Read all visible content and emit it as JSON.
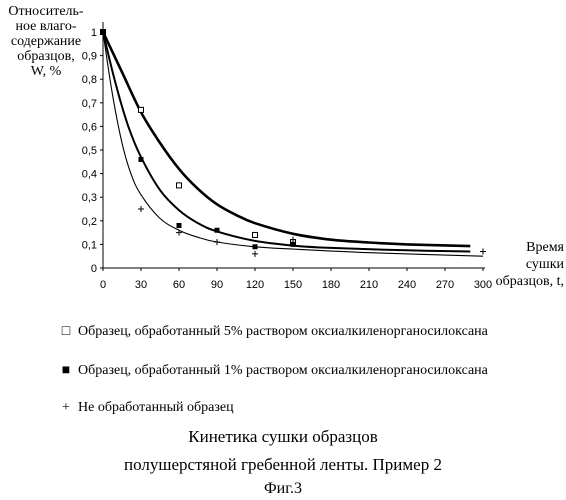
{
  "chart_data": {
    "type": "scatter",
    "ylabel_lines": [
      "Относитель-",
      "ное влаго-",
      "содержание",
      "образцов,",
      "W, %"
    ],
    "xlabel_lines": [
      "Время",
      "сушки",
      "образцов, t,"
    ],
    "x_ticks": [
      "0",
      "30",
      "60",
      "90",
      "120",
      "150",
      "180",
      "210",
      "240",
      "270",
      "300"
    ],
    "y_ticks": [
      "0",
      "0,1",
      "0,2",
      "0,3",
      "0,4",
      "0,5",
      "0,6",
      "0,7",
      "0,8",
      "0,9",
      "1"
    ],
    "xlim": [
      0,
      300
    ],
    "ylim": [
      0,
      1
    ],
    "series": [
      {
        "name": "Образец, обработанный 5% раствором оксиалкиленорганосилоксана",
        "marker": "open-square",
        "points": [
          [
            0,
            1
          ],
          [
            30,
            0.67
          ],
          [
            60,
            0.35
          ],
          [
            120,
            0.14
          ],
          [
            150,
            0.11
          ]
        ],
        "curve": [
          [
            0,
            1
          ],
          [
            15,
            0.83
          ],
          [
            30,
            0.66
          ],
          [
            45,
            0.53
          ],
          [
            60,
            0.42
          ],
          [
            75,
            0.335
          ],
          [
            90,
            0.27
          ],
          [
            105,
            0.225
          ],
          [
            120,
            0.19
          ],
          [
            150,
            0.145
          ],
          [
            180,
            0.12
          ],
          [
            210,
            0.108
          ],
          [
            240,
            0.1
          ],
          [
            290,
            0.093
          ]
        ],
        "line_width": 2.6
      },
      {
        "name": "Образец, обработанный 1% раствором оксиалкиленорганосилоксана",
        "marker": "filled-square",
        "points": [
          [
            0,
            1
          ],
          [
            30,
            0.46
          ],
          [
            60,
            0.18
          ],
          [
            90,
            0.16
          ],
          [
            120,
            0.09
          ],
          [
            150,
            0.1
          ]
        ],
        "curve": [
          [
            0,
            1
          ],
          [
            10,
            0.78
          ],
          [
            20,
            0.6
          ],
          [
            30,
            0.47
          ],
          [
            45,
            0.33
          ],
          [
            60,
            0.245
          ],
          [
            75,
            0.19
          ],
          [
            90,
            0.155
          ],
          [
            120,
            0.115
          ],
          [
            150,
            0.095
          ],
          [
            180,
            0.085
          ],
          [
            240,
            0.075
          ],
          [
            290,
            0.07
          ]
        ],
        "line_width": 2.0
      },
      {
        "name": "Не обработанный образец",
        "marker": "plus",
        "points": [
          [
            0,
            1
          ],
          [
            30,
            0.25
          ],
          [
            60,
            0.15
          ],
          [
            90,
            0.11
          ],
          [
            120,
            0.06
          ],
          [
            150,
            0.12
          ],
          [
            300,
            0.07
          ]
        ],
        "curve": [
          [
            0,
            1
          ],
          [
            7,
            0.75
          ],
          [
            15,
            0.53
          ],
          [
            22,
            0.4
          ],
          [
            30,
            0.31
          ],
          [
            45,
            0.21
          ],
          [
            60,
            0.16
          ],
          [
            75,
            0.13
          ],
          [
            90,
            0.11
          ],
          [
            120,
            0.09
          ],
          [
            150,
            0.08
          ],
          [
            210,
            0.065
          ],
          [
            300,
            0.05
          ]
        ],
        "line_width": 1.1
      }
    ],
    "caption_lines": [
      "Кинетика сушки образцов",
      "полушерстяной гребенной ленты. Пример 2"
    ],
    "figure_label": "Фиг.3"
  }
}
